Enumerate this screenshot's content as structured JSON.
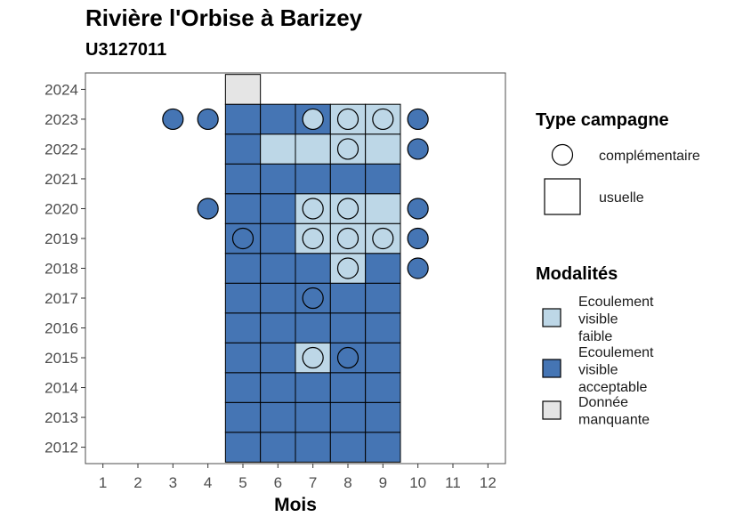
{
  "chart_data": {
    "type": "heatmap",
    "title": "Rivière l'Orbise à Barizey",
    "subtitle": "U3127011",
    "xlabel": "Mois",
    "ylabel": "",
    "x_ticks": [
      1,
      2,
      3,
      4,
      5,
      6,
      7,
      8,
      9,
      10,
      11,
      12
    ],
    "y_ticks": [
      2012,
      2013,
      2014,
      2015,
      2016,
      2017,
      2018,
      2019,
      2020,
      2021,
      2022,
      2023,
      2024
    ],
    "xlim": [
      0.5,
      12.5
    ],
    "ylim": [
      2011.45,
      2024.55
    ],
    "grid": false,
    "colors": {
      "faible": "#bdd7e7",
      "acceptable": "#4575b4",
      "manquante": "#e5e5e5",
      "frame": "#4d4d4d"
    },
    "legend_type": {
      "title": "Type campagne",
      "items": [
        {
          "key": "complementaire",
          "label": "complémentaire"
        },
        {
          "key": "usuelle",
          "label": "usuelle"
        }
      ]
    },
    "legend_mod": {
      "title": "Modalités",
      "items": [
        {
          "key": "faible",
          "lines": [
            "Ecoulement",
            "visible",
            "faible"
          ]
        },
        {
          "key": "acceptable",
          "lines": [
            "Ecoulement",
            "visible",
            "acceptable"
          ]
        },
        {
          "key": "manquante",
          "lines": [
            "Donnée",
            "manquante"
          ]
        }
      ]
    },
    "usuelle": [
      {
        "year": 2012,
        "month": 5,
        "value": "acceptable"
      },
      {
        "year": 2012,
        "month": 6,
        "value": "acceptable"
      },
      {
        "year": 2012,
        "month": 7,
        "value": "acceptable"
      },
      {
        "year": 2012,
        "month": 8,
        "value": "acceptable"
      },
      {
        "year": 2012,
        "month": 9,
        "value": "acceptable"
      },
      {
        "year": 2013,
        "month": 5,
        "value": "acceptable"
      },
      {
        "year": 2013,
        "month": 6,
        "value": "acceptable"
      },
      {
        "year": 2013,
        "month": 7,
        "value": "acceptable"
      },
      {
        "year": 2013,
        "month": 8,
        "value": "acceptable"
      },
      {
        "year": 2013,
        "month": 9,
        "value": "acceptable"
      },
      {
        "year": 2014,
        "month": 5,
        "value": "acceptable"
      },
      {
        "year": 2014,
        "month": 6,
        "value": "acceptable"
      },
      {
        "year": 2014,
        "month": 7,
        "value": "acceptable"
      },
      {
        "year": 2014,
        "month": 8,
        "value": "acceptable"
      },
      {
        "year": 2014,
        "month": 9,
        "value": "acceptable"
      },
      {
        "year": 2015,
        "month": 5,
        "value": "acceptable"
      },
      {
        "year": 2015,
        "month": 6,
        "value": "acceptable"
      },
      {
        "year": 2015,
        "month": 7,
        "value": "faible"
      },
      {
        "year": 2015,
        "month": 8,
        "value": "acceptable"
      },
      {
        "year": 2015,
        "month": 9,
        "value": "acceptable"
      },
      {
        "year": 2016,
        "month": 5,
        "value": "acceptable"
      },
      {
        "year": 2016,
        "month": 6,
        "value": "acceptable"
      },
      {
        "year": 2016,
        "month": 7,
        "value": "acceptable"
      },
      {
        "year": 2016,
        "month": 8,
        "value": "acceptable"
      },
      {
        "year": 2016,
        "month": 9,
        "value": "acceptable"
      },
      {
        "year": 2017,
        "month": 5,
        "value": "acceptable"
      },
      {
        "year": 2017,
        "month": 6,
        "value": "acceptable"
      },
      {
        "year": 2017,
        "month": 7,
        "value": "acceptable"
      },
      {
        "year": 2017,
        "month": 8,
        "value": "acceptable"
      },
      {
        "year": 2017,
        "month": 9,
        "value": "acceptable"
      },
      {
        "year": 2018,
        "month": 5,
        "value": "acceptable"
      },
      {
        "year": 2018,
        "month": 6,
        "value": "acceptable"
      },
      {
        "year": 2018,
        "month": 7,
        "value": "acceptable"
      },
      {
        "year": 2018,
        "month": 8,
        "value": "faible"
      },
      {
        "year": 2018,
        "month": 9,
        "value": "acceptable"
      },
      {
        "year": 2019,
        "month": 5,
        "value": "acceptable"
      },
      {
        "year": 2019,
        "month": 6,
        "value": "acceptable"
      },
      {
        "year": 2019,
        "month": 7,
        "value": "faible"
      },
      {
        "year": 2019,
        "month": 8,
        "value": "faible"
      },
      {
        "year": 2019,
        "month": 9,
        "value": "faible"
      },
      {
        "year": 2020,
        "month": 5,
        "value": "acceptable"
      },
      {
        "year": 2020,
        "month": 6,
        "value": "acceptable"
      },
      {
        "year": 2020,
        "month": 7,
        "value": "faible"
      },
      {
        "year": 2020,
        "month": 8,
        "value": "faible"
      },
      {
        "year": 2020,
        "month": 9,
        "value": "faible"
      },
      {
        "year": 2021,
        "month": 5,
        "value": "acceptable"
      },
      {
        "year": 2021,
        "month": 6,
        "value": "acceptable"
      },
      {
        "year": 2021,
        "month": 7,
        "value": "acceptable"
      },
      {
        "year": 2021,
        "month": 8,
        "value": "acceptable"
      },
      {
        "year": 2021,
        "month": 9,
        "value": "acceptable"
      },
      {
        "year": 2022,
        "month": 5,
        "value": "acceptable"
      },
      {
        "year": 2022,
        "month": 6,
        "value": "faible"
      },
      {
        "year": 2022,
        "month": 7,
        "value": "faible"
      },
      {
        "year": 2022,
        "month": 8,
        "value": "faible"
      },
      {
        "year": 2022,
        "month": 9,
        "value": "faible"
      },
      {
        "year": 2023,
        "month": 5,
        "value": "acceptable"
      },
      {
        "year": 2023,
        "month": 6,
        "value": "acceptable"
      },
      {
        "year": 2023,
        "month": 7,
        "value": "acceptable"
      },
      {
        "year": 2023,
        "month": 8,
        "value": "faible"
      },
      {
        "year": 2023,
        "month": 9,
        "value": "faible"
      },
      {
        "year": 2024,
        "month": 5,
        "value": "manquante"
      }
    ],
    "complementaire": [
      {
        "year": 2015,
        "month": 7,
        "value": "faible"
      },
      {
        "year": 2015,
        "month": 8,
        "value": "acceptable"
      },
      {
        "year": 2017,
        "month": 7,
        "value": "acceptable"
      },
      {
        "year": 2018,
        "month": 8,
        "value": "faible"
      },
      {
        "year": 2018,
        "month": 10,
        "value": "acceptable"
      },
      {
        "year": 2019,
        "month": 5,
        "value": "acceptable"
      },
      {
        "year": 2019,
        "month": 7,
        "value": "faible"
      },
      {
        "year": 2019,
        "month": 8,
        "value": "faible"
      },
      {
        "year": 2019,
        "month": 9,
        "value": "faible"
      },
      {
        "year": 2019,
        "month": 10,
        "value": "acceptable"
      },
      {
        "year": 2020,
        "month": 4,
        "value": "acceptable"
      },
      {
        "year": 2020,
        "month": 7,
        "value": "faible"
      },
      {
        "year": 2020,
        "month": 8,
        "value": "faible"
      },
      {
        "year": 2020,
        "month": 10,
        "value": "acceptable"
      },
      {
        "year": 2022,
        "month": 8,
        "value": "faible"
      },
      {
        "year": 2022,
        "month": 10,
        "value": "acceptable"
      },
      {
        "year": 2023,
        "month": 3,
        "value": "acceptable"
      },
      {
        "year": 2023,
        "month": 4,
        "value": "acceptable"
      },
      {
        "year": 2023,
        "month": 7,
        "value": "faible"
      },
      {
        "year": 2023,
        "month": 8,
        "value": "faible"
      },
      {
        "year": 2023,
        "month": 9,
        "value": "faible"
      },
      {
        "year": 2023,
        "month": 10,
        "value": "acceptable"
      }
    ]
  }
}
